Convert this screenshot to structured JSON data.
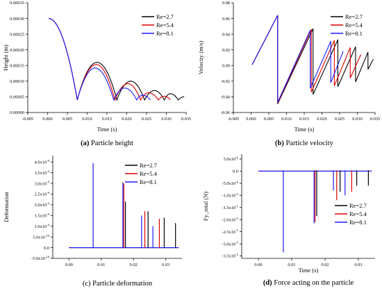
{
  "series_styles": [
    {
      "name": "Re=2.7",
      "color": "#000000"
    },
    {
      "name": "Re=5.4",
      "color": "#e00000"
    },
    {
      "name": "Re=8.1",
      "color": "#1a1aff"
    }
  ],
  "chart_data": [
    {
      "type": "line",
      "xlabel": "Time (s)",
      "ylabel": "Height (m)",
      "caption_letter": "(a)",
      "caption_text": " Particle height",
      "xlim": [
        -0.005,
        0.035
      ],
      "ylim": [
        0,
        0.00035
      ],
      "xticks": [
        "-0.005",
        "0.000",
        "0.005",
        "0.010",
        "0.015",
        "0.020",
        "0.025",
        "0.030",
        "0.035"
      ],
      "yticks": [
        "0.00000",
        "0.00005",
        "0.00010",
        "0.00015",
        "0.00020",
        "0.00025",
        "0.00030",
        "0.00035"
      ],
      "legend": [
        "Re=2.7",
        "Re=5.4",
        "Re=8.1"
      ],
      "legend_position": "top-right",
      "series": [
        {
          "name": "Re=2.7",
          "points": [
            [
              0.0003,
              0.0003
            ],
            [
              0.0075,
              4e-05
            ],
            [
              0.0125,
              0.00016
            ],
            [
              0.0175,
              4e-05
            ],
            [
              0.021,
              0.0001
            ],
            [
              0.0245,
              4e-05
            ],
            [
              0.027,
              7e-05
            ],
            [
              0.0295,
              4e-05
            ],
            [
              0.031,
              6e-05
            ],
            [
              0.033,
              4e-05
            ],
            [
              0.0345,
              5e-05
            ]
          ]
        },
        {
          "name": "Re=5.4",
          "points": [
            [
              0.0003,
              0.0003
            ],
            [
              0.0075,
              4e-05
            ],
            [
              0.0123,
              0.000153
            ],
            [
              0.017,
              4e-05
            ],
            [
              0.0203,
              9.2e-05
            ],
            [
              0.0235,
              4e-05
            ],
            [
              0.0255,
              6.3e-05
            ],
            [
              0.028,
              4e-05
            ],
            [
              0.0295,
              5.2e-05
            ],
            [
              0.031,
              4e-05
            ]
          ]
        },
        {
          "name": "Re=8.1",
          "points": [
            [
              0.0003,
              0.0003
            ],
            [
              0.0075,
              4e-05
            ],
            [
              0.012,
              0.000142
            ],
            [
              0.0167,
              4e-05
            ],
            [
              0.0195,
              7.8e-05
            ],
            [
              0.0225,
              4e-05
            ],
            [
              0.024,
              5.5e-05
            ],
            [
              0.026,
              4e-05
            ]
          ]
        }
      ]
    },
    {
      "type": "line",
      "xlabel": "Time (s)",
      "ylabel": "Velocity (m/s)",
      "caption_letter": "(b)",
      "caption_text": " Particle velocity",
      "xlim": [
        -0.005,
        0.035
      ],
      "ylim": [
        -0.06,
        0.08
      ],
      "xticks": [
        "-0.005",
        "0.000",
        "0.005",
        "0.010",
        "0.015",
        "0.020",
        "0.025",
        "0.030",
        "0.035"
      ],
      "yticks": [
        "-0.06",
        "-0.04",
        "-0.02",
        "0.00",
        "0.02",
        "0.04",
        "0.06",
        "0.08"
      ],
      "legend": [
        "Re=2.7",
        "Re=5.4",
        "Re=8.1"
      ],
      "legend_position": "top-right",
      "series": [
        {
          "name": "Re=2.7",
          "segments": [
            [
              [
                0.0003,
                0.001
              ],
              [
                0.0075,
                0.064
              ]
            ],
            [
              [
                0.0075,
                -0.049
              ],
              [
                0.0175,
                0.047
              ]
            ],
            [
              [
                0.0175,
                -0.037
              ],
              [
                0.0245,
                0.033
              ]
            ],
            [
              [
                0.0245,
                -0.027
              ],
              [
                0.0295,
                0.024
              ]
            ],
            [
              [
                0.0295,
                -0.021
              ],
              [
                0.033,
                0.017
              ]
            ],
            [
              [
                0.033,
                -0.005
              ],
              [
                0.0345,
                0.008
              ]
            ]
          ]
        },
        {
          "name": "Re=5.4",
          "segments": [
            [
              [
                0.0003,
                0.001
              ],
              [
                0.0075,
                0.064
              ]
            ],
            [
              [
                0.0075,
                -0.048
              ],
              [
                0.017,
                0.046
              ]
            ],
            [
              [
                0.017,
                -0.034
              ],
              [
                0.0235,
                0.032
              ]
            ],
            [
              [
                0.0235,
                -0.026
              ],
              [
                0.028,
                0.023
              ]
            ],
            [
              [
                0.028,
                -0.016
              ],
              [
                0.031,
                0.014
              ]
            ]
          ]
        },
        {
          "name": "Re=8.1",
          "segments": [
            [
              [
                0.0003,
                0.001
              ],
              [
                0.0075,
                0.064
              ]
            ],
            [
              [
                0.0075,
                -0.047
              ],
              [
                0.0167,
                0.045
              ]
            ],
            [
              [
                0.0167,
                -0.029
              ],
              [
                0.0225,
                0.031
              ]
            ],
            [
              [
                0.0225,
                -0.022
              ],
              [
                0.026,
                0.018
              ]
            ]
          ]
        }
      ]
    },
    {
      "type": "bar",
      "xlabel": "",
      "ylabel": "Deformation",
      "caption_letter": "",
      "caption_text": "(c) Particle deformation",
      "xlim": [
        -0.005,
        0.035
      ],
      "ylim": [
        -5e-10,
        4.3e-09
      ],
      "xticks": [
        "0.00",
        "0.01",
        "0.02",
        "0.03"
      ],
      "xtick_values": [
        0.0,
        0.01,
        0.02,
        0.03
      ],
      "yticks": [
        {
          "m": "-5.0x10",
          "e": "-10",
          "v": -5e-10
        },
        {
          "m": "0.0",
          "e": "",
          "v": 0
        },
        {
          "m": "5.0x10",
          "e": "-10",
          "v": 5e-10
        },
        {
          "m": "1.0x10",
          "e": "-9",
          "v": 1e-09
        },
        {
          "m": "1.5x10",
          "e": "-9",
          "v": 1.5e-09
        },
        {
          "m": "2.0x10",
          "e": "-9",
          "v": 2e-09
        },
        {
          "m": "2.5x10",
          "e": "-9",
          "v": 2.5e-09
        },
        {
          "m": "3.0x10",
          "e": "-9",
          "v": 3e-09
        },
        {
          "m": "3.5x10",
          "e": "-9",
          "v": 3.5e-09
        },
        {
          "m": "4.0x10",
          "e": "-9",
          "v": 4e-09
        }
      ],
      "legend": [
        "Re=2.7",
        "Re=5.4",
        "Re=8.1"
      ],
      "legend_position": "center-right",
      "baseline_range": [
        0.0,
        0.034
      ],
      "series": [
        {
          "name": "Re=2.7",
          "spikes": [
            [
              0.0175,
              2.15e-09
            ],
            [
              0.0245,
              1.7e-09
            ],
            [
              0.0295,
              1.4e-09
            ],
            [
              0.033,
              1.15e-09
            ]
          ]
        },
        {
          "name": "Re=5.4",
          "spikes": [
            [
              0.017,
              3e-09
            ],
            [
              0.0235,
              1.7e-09
            ],
            [
              0.028,
              1.35e-09
            ]
          ]
        },
        {
          "name": "Re=8.1",
          "spikes": [
            [
              0.0075,
              3.95e-09
            ],
            [
              0.0167,
              3.05e-09
            ],
            [
              0.0225,
              1.5e-09
            ],
            [
              0.026,
              1e-09
            ]
          ]
        }
      ]
    },
    {
      "type": "bar",
      "xlabel": "Time (s)",
      "ylabel": "Fy_total (N)",
      "caption_letter": "(d)",
      "caption_text": " Force acting on the particle",
      "xlim": [
        -0.005,
        0.035
      ],
      "ylim": [
        -3.6e-05,
        7e-06
      ],
      "xticks": [
        "0.00",
        "0.01",
        "0.02",
        "0.03"
      ],
      "xtick_values": [
        0.0,
        0.01,
        0.02,
        0.03
      ],
      "yticks": [
        {
          "m": "-3.5x10",
          "e": "-5",
          "v": -3.5e-05
        },
        {
          "m": "-3.0x10",
          "e": "-5",
          "v": -3e-05
        },
        {
          "m": "-2.5x10",
          "e": "-5",
          "v": -2.5e-05
        },
        {
          "m": "-2.0x10",
          "e": "-5",
          "v": -2e-05
        },
        {
          "m": "-1.5x10",
          "e": "-5",
          "v": -1.5e-05
        },
        {
          "m": "-1.0x10",
          "e": "-5",
          "v": -1e-05
        },
        {
          "m": "-5.0x10",
          "e": "-6",
          "v": -5e-06
        },
        {
          "m": "0.0",
          "e": "",
          "v": 0
        },
        {
          "m": "5.0x10",
          "e": "-6",
          "v": 5e-06
        }
      ],
      "legend": [
        "Re=2.7",
        "Re=5.4",
        "Re=8.1"
      ],
      "legend_position": "bottom-right",
      "baseline_range": [
        0.0,
        0.034
      ],
      "series": [
        {
          "name": "Re=2.7",
          "spikes": [
            [
              0.0175,
              -1.85e-05,
              3e-07
            ],
            [
              0.0245,
              -8.5e-06,
              3e-07
            ],
            [
              0.0295,
              -6e-06,
              3e-07
            ],
            [
              0.033,
              -6e-06,
              3e-07
            ]
          ]
        },
        {
          "name": "Re=5.4",
          "spikes": [
            [
              0.017,
              -2.1e-05,
              3e-07
            ],
            [
              0.0235,
              -1.2e-05,
              3e-07
            ],
            [
              0.028,
              -8.5e-06,
              3e-07
            ]
          ]
        },
        {
          "name": "Re=8.1",
          "spikes": [
            [
              0.0075,
              -3.35e-05,
              3e-07
            ],
            [
              0.0167,
              -2.15e-05,
              3e-07
            ],
            [
              0.0225,
              -8e-06,
              3e-07
            ],
            [
              0.026,
              -1e-05,
              3e-07
            ]
          ]
        }
      ]
    }
  ]
}
